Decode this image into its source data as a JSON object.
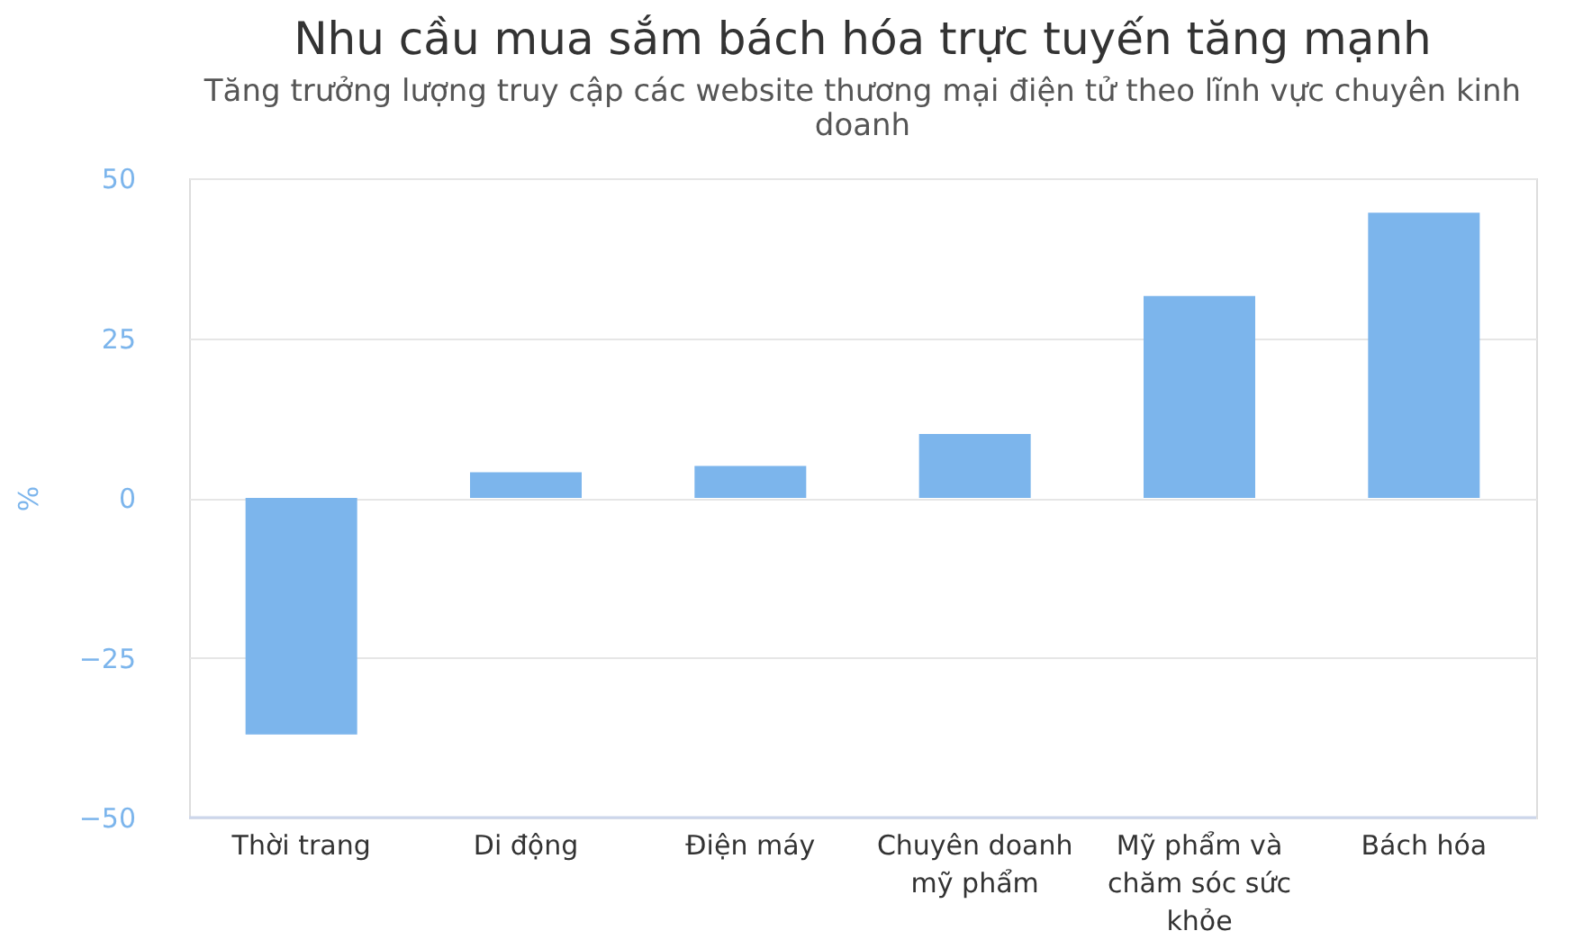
{
  "chart_data": {
    "type": "bar",
    "title": "Nhu cầu mua sắm bách hóa trực tuyến tăng mạnh",
    "subtitle": "Tăng trưởng lượng truy cập các website thương mại điện tử theo lĩnh vực chuyên kinh doanh",
    "ylabel": "%",
    "categories": [
      "Thời trang",
      "Di động",
      "Điện máy",
      "Chuyên doanh mỹ phẩm",
      "Mỹ phẩm và chăm sóc sức khỏe",
      "Bách hóa"
    ],
    "values": [
      -37,
      4,
      5,
      10,
      31.6,
      44.6
    ],
    "color": "#7cb5ec",
    "ylim": [
      -50,
      50
    ],
    "yticks": [
      -50,
      -25,
      0,
      25,
      50
    ],
    "grid": "y"
  }
}
